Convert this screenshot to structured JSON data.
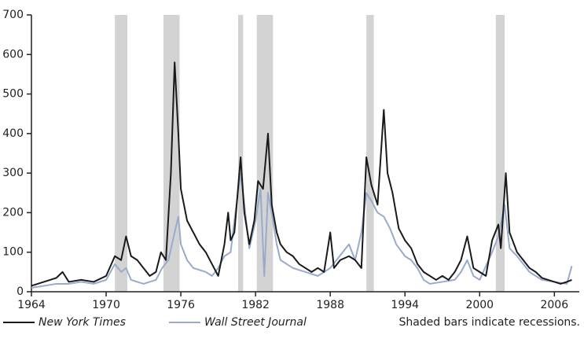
{
  "chart_data": {
    "type": "line",
    "xlim": [
      1964,
      2008
    ],
    "xticks": [
      1964,
      1970,
      1976,
      1982,
      1988,
      1994,
      2000,
      2006
    ],
    "ylim": [
      0,
      700
    ],
    "yticks": [
      0,
      100,
      200,
      300,
      400,
      500,
      600,
      700
    ],
    "recessions": [
      [
        1970.7,
        1971.7
      ],
      [
        1974.6,
        1975.9
      ],
      [
        1980.6,
        1981.0
      ],
      [
        1982.1,
        1983.4
      ],
      [
        1990.9,
        1991.5
      ],
      [
        2001.3,
        2002.0
      ]
    ],
    "recession_color": "#d3d3d3",
    "note": "Shaded bars indicate recessions.",
    "series": [
      {
        "name": "New York Times",
        "color": "#1a1a1a",
        "x": [
          1964,
          1965,
          1966,
          1966.5,
          1967,
          1968,
          1969,
          1970,
          1970.7,
          1971.2,
          1971.6,
          1972,
          1972.5,
          1973,
          1973.5,
          1974,
          1974.4,
          1974.8,
          1975.2,
          1975.5,
          1975.8,
          1976,
          1976.5,
          1977,
          1977.5,
          1978,
          1978.5,
          1979,
          1979.5,
          1979.8,
          1980,
          1980.3,
          1980.8,
          1981.1,
          1981.5,
          1981.9,
          1982.2,
          1982.6,
          1983,
          1983.3,
          1983.7,
          1984,
          1984.5,
          1985,
          1985.5,
          1986,
          1986.5,
          1987,
          1987.5,
          1988,
          1988.3,
          1988.8,
          1989.5,
          1990,
          1990.5,
          1990.9,
          1991.3,
          1991.8,
          1992.3,
          1992.6,
          1993,
          1993.5,
          1994,
          1994.5,
          1995,
          1995.5,
          1996,
          1996.5,
          1997,
          1997.5,
          1998,
          1998.5,
          1999,
          1999.5,
          2000,
          2000.5,
          2001,
          2001.5,
          2001.7,
          2002.1,
          2002.4,
          2003,
          2003.5,
          2004,
          2004.5,
          2005,
          2005.5,
          2006,
          2006.5,
          2007,
          2007.4
        ],
        "values": [
          15,
          25,
          35,
          50,
          25,
          30,
          25,
          40,
          90,
          80,
          140,
          90,
          80,
          60,
          40,
          50,
          100,
          80,
          300,
          580,
          400,
          260,
          180,
          150,
          120,
          100,
          70,
          40,
          120,
          200,
          130,
          150,
          340,
          200,
          120,
          180,
          280,
          260,
          400,
          220,
          150,
          120,
          100,
          90,
          70,
          60,
          50,
          60,
          50,
          150,
          60,
          80,
          90,
          80,
          60,
          340,
          270,
          220,
          460,
          300,
          250,
          160,
          130,
          110,
          70,
          50,
          40,
          30,
          40,
          30,
          50,
          80,
          140,
          60,
          50,
          40,
          130,
          170,
          110,
          300,
          150,
          100,
          80,
          60,
          50,
          35,
          30,
          25,
          20,
          25,
          30
        ]
      },
      {
        "name": "Wall Street Journal",
        "color": "#9aaacb",
        "x": [
          1964,
          1965,
          1966,
          1967,
          1968,
          1969,
          1970,
          1970.7,
          1971.2,
          1971.6,
          1972,
          1973,
          1974,
          1974.5,
          1975,
          1975.5,
          1975.8,
          1976,
          1976.5,
          1977,
          1978,
          1978.5,
          1979,
          1979.5,
          1980,
          1980.3,
          1980.8,
          1981.1,
          1981.5,
          1982,
          1982.4,
          1982.7,
          1983,
          1983.3,
          1983.7,
          1984,
          1985,
          1986,
          1987,
          1987.5,
          1988,
          1988.5,
          1989,
          1989.5,
          1990,
          1990.5,
          1990.9,
          1991.3,
          1991.8,
          1992.3,
          1992.8,
          1993.3,
          1994,
          1994.5,
          1995,
          1995.5,
          1996,
          1997,
          1998,
          1998.5,
          1999,
          1999.5,
          2000,
          2001,
          2001.5,
          2002,
          2002.4,
          2003,
          2003.5,
          2004,
          2005,
          2006,
          2007,
          2007.4
        ],
        "values": [
          10,
          15,
          20,
          20,
          25,
          20,
          30,
          70,
          50,
          60,
          30,
          20,
          30,
          60,
          80,
          150,
          190,
          120,
          80,
          60,
          50,
          40,
          60,
          90,
          100,
          180,
          300,
          220,
          110,
          180,
          260,
          40,
          250,
          200,
          120,
          80,
          60,
          50,
          40,
          50,
          60,
          80,
          100,
          120,
          80,
          150,
          250,
          230,
          200,
          190,
          160,
          120,
          90,
          80,
          60,
          30,
          20,
          25,
          30,
          50,
          80,
          40,
          30,
          100,
          140,
          220,
          110,
          90,
          70,
          50,
          30,
          25,
          20,
          65
        ]
      }
    ]
  }
}
